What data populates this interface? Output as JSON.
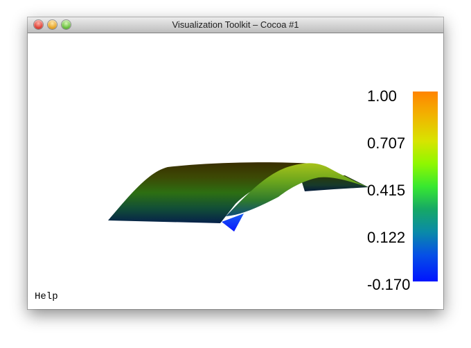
{
  "window": {
    "title": "Visualization Toolkit – Cocoa #1"
  },
  "colorbar": {
    "labels": [
      "1.00",
      "0.707",
      "0.415",
      "0.122",
      "-0.170"
    ],
    "range": [
      -0.17,
      1.0
    ],
    "colors": {
      "top": "#ff8400",
      "upper": "#d8e400",
      "middle": "#38e830",
      "lower": "#0a8aa8",
      "bottom": "#0014ff"
    }
  },
  "overlay": {
    "help_text": "Help"
  }
}
